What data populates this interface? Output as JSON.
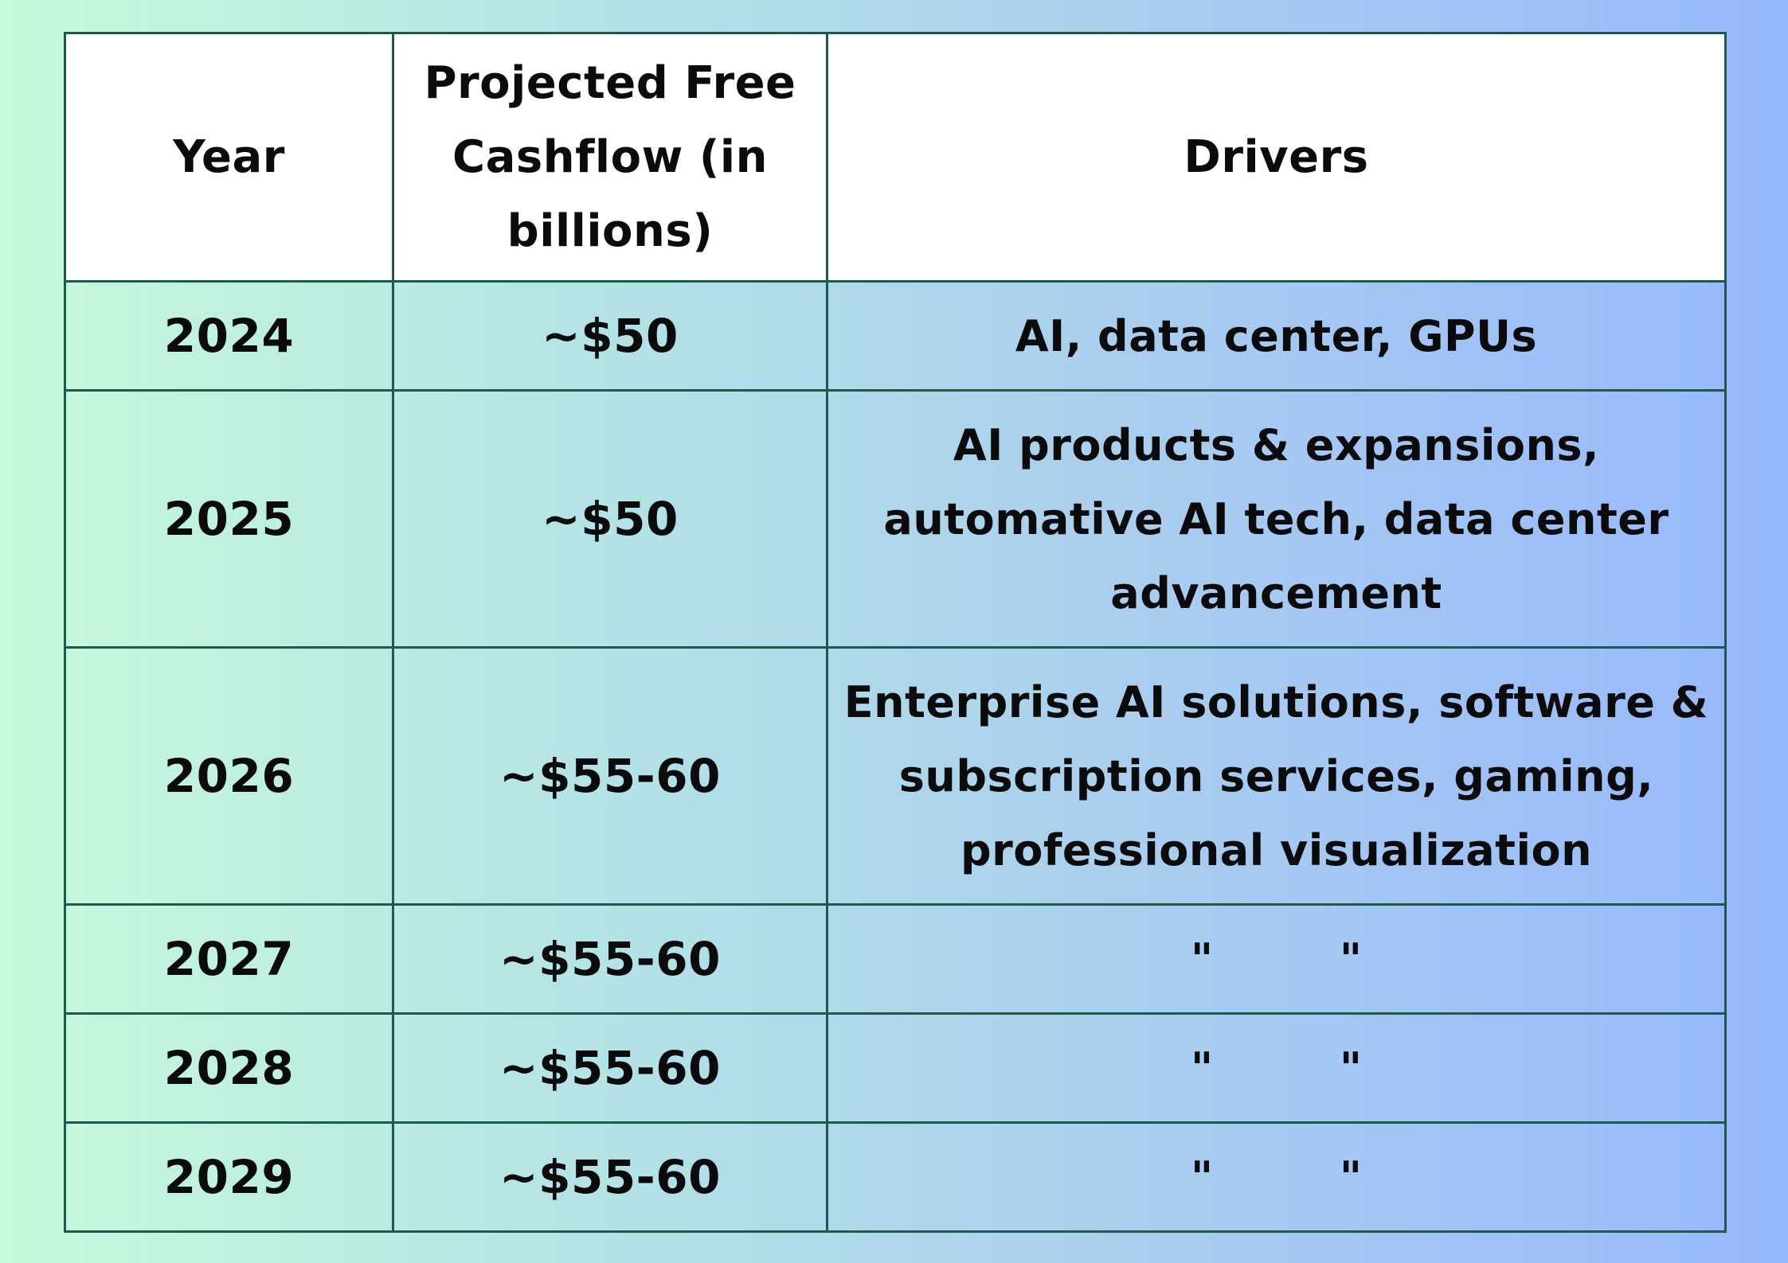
{
  "table": {
    "headers": {
      "year": "Year",
      "fcf": "Projected Free Cashflow (in billions)",
      "drivers": "Drivers"
    },
    "rows": [
      {
        "year": "2024",
        "fcf": "~$50",
        "drivers": "AI, data center, GPUs"
      },
      {
        "year": "2025",
        "fcf": "~$50",
        "drivers": "AI products & expansions, automative AI tech, data center advancement"
      },
      {
        "year": "2026",
        "fcf": "~$55-60",
        "drivers": "Enterprise AI solutions, software & subscription services, gaming, professional visualization"
      },
      {
        "year": "2027",
        "fcf": "~$55-60",
        "drivers": "\" \""
      },
      {
        "year": "2028",
        "fcf": "~$55-60",
        "drivers": "\" \""
      },
      {
        "year": "2029",
        "fcf": "~$55-60",
        "drivers": "\" \""
      }
    ]
  }
}
